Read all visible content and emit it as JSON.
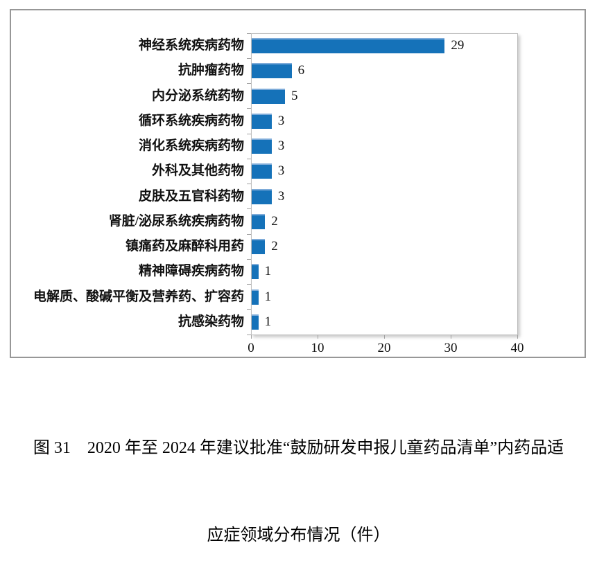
{
  "figure": {
    "caption_line1": "图 31　2020 年至 2024 年建议批准“鼓励研发申报儿童药品清单”内药品适",
    "caption_line2": "应症领域分布情况（件）"
  },
  "chart_data": {
    "type": "bar",
    "orientation": "horizontal",
    "title": "",
    "xlabel": "",
    "ylabel": "",
    "categories": [
      "神经系统疾病药物",
      "抗肿瘤药物",
      "内分泌系统药物",
      "循环系统疾病药物",
      "消化系统疾病药物",
      "外科及其他药物",
      "皮肤及五官科药物",
      "肾脏/泌尿系统疾病药物",
      "镇痛药及麻醉科用药",
      "精神障碍疾病药物",
      "电解质、酸碱平衡及营养药、扩容药",
      "抗感染药物"
    ],
    "values": [
      29,
      6,
      5,
      3,
      3,
      3,
      3,
      2,
      2,
      1,
      1,
      1
    ],
    "data_labels": [
      29,
      6,
      5,
      3,
      3,
      3,
      3,
      2,
      2,
      1,
      1,
      1
    ],
    "xlim": [
      0,
      40
    ],
    "x_ticks": [
      0,
      10,
      20,
      30,
      40
    ],
    "grid": "off",
    "legend": "none",
    "bar_color": "#1572b9",
    "bar_highlight_color": "#7dabd9",
    "axis_color": "#a0a0a0",
    "text_color": "#111111"
  }
}
